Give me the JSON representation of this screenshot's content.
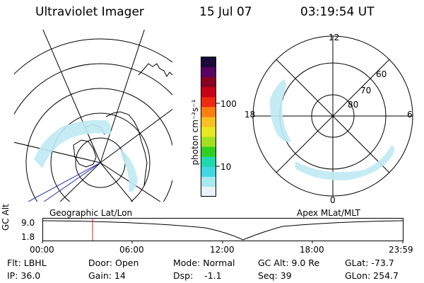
{
  "header": {
    "instrument": "Ultraviolet Imager",
    "date": "15 Jul 07",
    "time": "03:19:54 UT"
  },
  "left_map": {
    "label": "Geographic Lat/Lon"
  },
  "colorbar": {
    "unit": "photon cm⁻²s⁻¹",
    "ticks": [
      "100",
      "10"
    ],
    "colors": [
      "#1a0a3a",
      "#5a0060",
      "#8a0020",
      "#c80018",
      "#ee2a10",
      "#f88010",
      "#f8c020",
      "#e8e820",
      "#a0e020",
      "#30d020",
      "#20d8b0",
      "#40d8e0",
      "#a8e8f0",
      "#e8f4f8"
    ]
  },
  "right_map": {
    "label": "Apex MLat/MLT",
    "mlt_labels": {
      "top": "12",
      "left": "18",
      "right": "6",
      "bottom": "0"
    },
    "lat_labels": [
      "60",
      "70",
      "80"
    ]
  },
  "altitude_plot": {
    "ylabel": "GC Alt",
    "yticks": [
      "9.0",
      "1.8"
    ],
    "xticks": [
      "00:00",
      "06:00",
      "12:00",
      "18:00",
      "23:59"
    ],
    "marker_color": "#cc2222"
  },
  "status": {
    "row1": {
      "flt": "Flt: LBHL",
      "door": "Door: Open",
      "mode": "Mode: Normal",
      "gcalt": "GC Alt: 9.0 Re",
      "glat": "GLat: -73.7"
    },
    "row2": {
      "ip": "IP: 36.0",
      "gain": "Gain: 14",
      "dsp": "Dsp:    -1.1",
      "seq": "Seq: 39",
      "glon": "GLon: 254.7"
    }
  }
}
